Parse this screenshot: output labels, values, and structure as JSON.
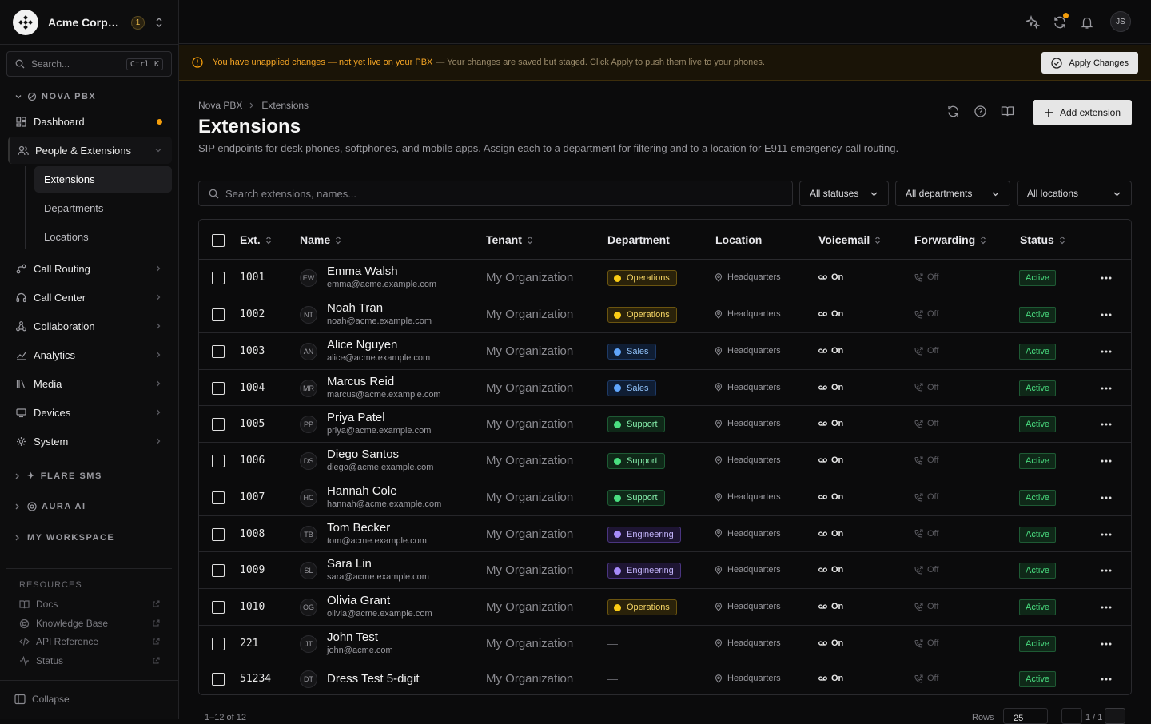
{
  "org": {
    "name": "Acme Corporation",
    "badge": "1"
  },
  "search": {
    "label": "Search...",
    "shortcut": "Ctrl K"
  },
  "sidebar": {
    "section_nova": "NOVA PBX",
    "items": [
      {
        "label": "Dashboard",
        "icon": "dashboard-icon"
      },
      {
        "label": "People & Extensions",
        "icon": "people-icon"
      },
      {
        "label": "Call Routing",
        "icon": "routing-icon"
      },
      {
        "label": "Call Center",
        "icon": "headset-icon"
      },
      {
        "label": "Collaboration",
        "icon": "collaboration-icon"
      },
      {
        "label": "Analytics",
        "icon": "analytics-icon"
      },
      {
        "label": "Media",
        "icon": "media-icon"
      },
      {
        "label": "Devices",
        "icon": "devices-icon"
      },
      {
        "label": "System",
        "icon": "system-icon"
      }
    ],
    "sub_items": [
      {
        "label": "Extensions"
      },
      {
        "label": "Departments"
      },
      {
        "label": "Locations"
      }
    ],
    "groups": [
      {
        "label": "FLARE SMS"
      },
      {
        "label": "AURA AI"
      },
      {
        "label": "MY WORKSPACE"
      }
    ],
    "resources_title": "RESOURCES",
    "resources": [
      {
        "label": "Docs"
      },
      {
        "label": "Knowledge Base"
      },
      {
        "label": "API Reference"
      },
      {
        "label": "Status"
      }
    ],
    "collapse": "Collapse"
  },
  "topbar": {
    "avatar": "JS"
  },
  "banner": {
    "warning": "You have unapplied changes — not yet live on your PBX",
    "detail": "— Your changes are saved but staged. Click Apply to push them live to your phones.",
    "apply": "Apply Changes"
  },
  "page": {
    "breadcrumb": [
      "Nova PBX",
      "Extensions"
    ],
    "title": "Extensions",
    "description": "SIP endpoints for desk phones, softphones, and mobile apps. Assign each to a department for filtering and to a location for E911 emergency-call routing.",
    "add_button": "Add extension"
  },
  "filters": {
    "search_placeholder": "Search extensions, names...",
    "status": "All statuses",
    "department": "All departments",
    "location": "All locations"
  },
  "table": {
    "headers": {
      "ext": "Ext.",
      "name": "Name",
      "tenant": "Tenant",
      "department": "Department",
      "location": "Location",
      "voicemail": "Voicemail",
      "forwarding": "Forwarding",
      "status": "Status"
    },
    "rows": [
      {
        "ext": "1001",
        "initials": "EW",
        "name": "Emma Walsh",
        "email": "emma@acme.example.com",
        "tenant": "My Organization",
        "dept": "Operations",
        "location": "Headquarters",
        "voicemail": "On",
        "forwarding": "Off",
        "status": "Active"
      },
      {
        "ext": "1002",
        "initials": "NT",
        "name": "Noah Tran",
        "email": "noah@acme.example.com",
        "tenant": "My Organization",
        "dept": "Operations",
        "location": "Headquarters",
        "voicemail": "On",
        "forwarding": "Off",
        "status": "Active"
      },
      {
        "ext": "1003",
        "initials": "AN",
        "name": "Alice Nguyen",
        "email": "alice@acme.example.com",
        "tenant": "My Organization",
        "dept": "Sales",
        "location": "Headquarters",
        "voicemail": "On",
        "forwarding": "Off",
        "status": "Active"
      },
      {
        "ext": "1004",
        "initials": "MR",
        "name": "Marcus Reid",
        "email": "marcus@acme.example.com",
        "tenant": "My Organization",
        "dept": "Sales",
        "location": "Headquarters",
        "voicemail": "On",
        "forwarding": "Off",
        "status": "Active"
      },
      {
        "ext": "1005",
        "initials": "PP",
        "name": "Priya Patel",
        "email": "priya@acme.example.com",
        "tenant": "My Organization",
        "dept": "Support",
        "location": "Headquarters",
        "voicemail": "On",
        "forwarding": "Off",
        "status": "Active"
      },
      {
        "ext": "1006",
        "initials": "DS",
        "name": "Diego Santos",
        "email": "diego@acme.example.com",
        "tenant": "My Organization",
        "dept": "Support",
        "location": "Headquarters",
        "voicemail": "On",
        "forwarding": "Off",
        "status": "Active"
      },
      {
        "ext": "1007",
        "initials": "HC",
        "name": "Hannah Cole",
        "email": "hannah@acme.example.com",
        "tenant": "My Organization",
        "dept": "Support",
        "location": "Headquarters",
        "voicemail": "On",
        "forwarding": "Off",
        "status": "Active"
      },
      {
        "ext": "1008",
        "initials": "TB",
        "name": "Tom Becker",
        "email": "tom@acme.example.com",
        "tenant": "My Organization",
        "dept": "Engineering",
        "location": "Headquarters",
        "voicemail": "On",
        "forwarding": "Off",
        "status": "Active"
      },
      {
        "ext": "1009",
        "initials": "SL",
        "name": "Sara Lin",
        "email": "sara@acme.example.com",
        "tenant": "My Organization",
        "dept": "Engineering",
        "location": "Headquarters",
        "voicemail": "On",
        "forwarding": "Off",
        "status": "Active"
      },
      {
        "ext": "1010",
        "initials": "OG",
        "name": "Olivia Grant",
        "email": "olivia@acme.example.com",
        "tenant": "My Organization",
        "dept": "Operations",
        "location": "Headquarters",
        "voicemail": "On",
        "forwarding": "Off",
        "status": "Active"
      },
      {
        "ext": "221",
        "initials": "JT",
        "name": "John Test",
        "email": "john@acme.com",
        "tenant": "My Organization",
        "dept": "—",
        "location": "Headquarters",
        "voicemail": "On",
        "forwarding": "Off",
        "status": "Active"
      },
      {
        "ext": "51234",
        "initials": "DT",
        "name": "Dress Test 5-digit",
        "email": "",
        "tenant": "My Organization",
        "dept": "—",
        "location": "Headquarters",
        "voicemail": "On",
        "forwarding": "Off",
        "status": "Active"
      }
    ]
  },
  "dept_colors": {
    "Operations": {
      "dot": "#facc15",
      "bg": "#2a220a",
      "border": "#6b5510",
      "text": "#f5d565"
    },
    "Sales": {
      "dot": "#60a5fa",
      "bg": "#0f1d33",
      "border": "#1e3a66",
      "text": "#93c5fd"
    },
    "Support": {
      "dot": "#4ade80",
      "bg": "#0f2818",
      "border": "#1e5a34",
      "text": "#86efac"
    },
    "Engineering": {
      "dot": "#a78bfa",
      "bg": "#1e1533",
      "border": "#4a3580",
      "text": "#c4b5fd"
    }
  },
  "footer": {
    "count": "1–12 of 12",
    "rows_label": "Rows",
    "rows_value": "25",
    "page": "1 / 1"
  }
}
